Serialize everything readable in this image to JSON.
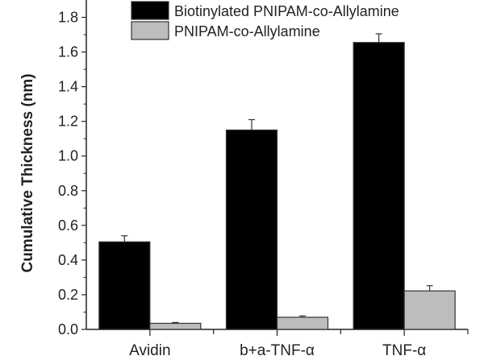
{
  "chart_data": {
    "type": "bar",
    "title": "",
    "xlabel": "",
    "ylabel": "Cumulative Thickness (nm)",
    "ylim": [
      0,
      1.9
    ],
    "yticks": [
      "0.0",
      "0.2",
      "0.4",
      "0.6",
      "0.8",
      "1.0",
      "1.2",
      "1.4",
      "1.6",
      "1.8"
    ],
    "categories": [
      "Avidin",
      "b+a-TNF-α",
      "TNF-α"
    ],
    "series": [
      {
        "name": "Biotinylated PNIPAM-co-Allylamine",
        "color": "#000000",
        "values": [
          0.505,
          1.15,
          1.655
        ],
        "errors": [
          0.035,
          0.06,
          0.05
        ]
      },
      {
        "name": "PNIPAM-co-Allylamine",
        "color": "#bdbdbd",
        "values": [
          0.035,
          0.07,
          0.222
        ],
        "errors": [
          0.005,
          0.008,
          0.03
        ]
      }
    ],
    "legend_position": "top",
    "grid": false
  }
}
